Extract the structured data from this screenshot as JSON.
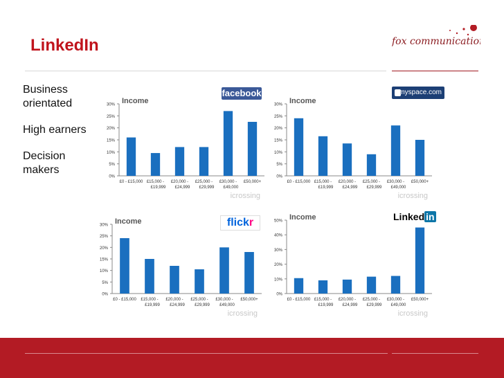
{
  "slide": {
    "title": "LinkedIn",
    "bullets": [
      "Business orientated",
      "High earners",
      "Decision makers"
    ],
    "logo_text": "fox communications",
    "colors": {
      "accent": "#c0141c",
      "bar": "#1a6fbf",
      "footer": "#b31b24"
    }
  },
  "brands": {
    "facebook": "facebook",
    "myspace": "myspace.com",
    "flickr_a": "flick",
    "flickr_b": "r",
    "linkedin_a": "Linked",
    "linkedin_b": "in"
  },
  "chart_data": [
    {
      "type": "bar",
      "title": "Income",
      "categories": [
        [
          "£0 - £15,000"
        ],
        [
          "£15,000 -",
          "£19,999"
        ],
        [
          "£20,000 -",
          "£24,999"
        ],
        [
          "£25,000 -",
          "£29,999"
        ],
        [
          "£30,000 -",
          "£49,000"
        ],
        [
          "£50,000+"
        ]
      ],
      "values": [
        16,
        9.5,
        12,
        12,
        27,
        22.5
      ],
      "ylim": [
        0,
        30
      ],
      "yticks": [
        "0%",
        "5%",
        "10%",
        "15%",
        "20%",
        "25%",
        "30%"
      ],
      "watermark": "icrossing"
    },
    {
      "type": "bar",
      "title": "Income",
      "categories": [
        [
          "£0 - £15,000"
        ],
        [
          "£15,000 -",
          "£19,999"
        ],
        [
          "£20,000 -",
          "£24,999"
        ],
        [
          "£25,000 -",
          "£29,999"
        ],
        [
          "£30,000 -",
          "£49,000"
        ],
        [
          "£50,000+"
        ]
      ],
      "values": [
        24,
        16.5,
        13.5,
        9,
        21,
        15
      ],
      "ylim": [
        0,
        30
      ],
      "yticks": [
        "0%",
        "5%",
        "10%",
        "15%",
        "20%",
        "25%",
        "30%"
      ],
      "watermark": "icrossing"
    },
    {
      "type": "bar",
      "title": "Income",
      "categories": [
        [
          "£0 - £15,000"
        ],
        [
          "£15,000 -",
          "£19,999"
        ],
        [
          "£20,000 -",
          "£24,999"
        ],
        [
          "£25,000 -",
          "£29,999"
        ],
        [
          "£30,000 -",
          "£49,000"
        ],
        [
          "£50,000+"
        ]
      ],
      "values": [
        24,
        15,
        12,
        10.5,
        20,
        18
      ],
      "ylim": [
        0,
        30
      ],
      "yticks": [
        "0%",
        "5%",
        "10%",
        "15%",
        "20%",
        "25%",
        "30%"
      ],
      "watermark": "icrossing"
    },
    {
      "type": "bar",
      "title": "Income",
      "categories": [
        [
          "£0 - £15,000"
        ],
        [
          "£15,000 -",
          "£19,999"
        ],
        [
          "£20,000 -",
          "£24,999"
        ],
        [
          "£25,000 -",
          "£29,999"
        ],
        [
          "£30,000 -",
          "£49,000"
        ],
        [
          "£50,000+"
        ]
      ],
      "values": [
        10.5,
        9,
        9.5,
        11.5,
        12,
        45
      ],
      "ylim": [
        0,
        50
      ],
      "yticks": [
        "0%",
        "10%",
        "20%",
        "30%",
        "40%",
        "50%"
      ],
      "watermark": "icrossing"
    }
  ]
}
